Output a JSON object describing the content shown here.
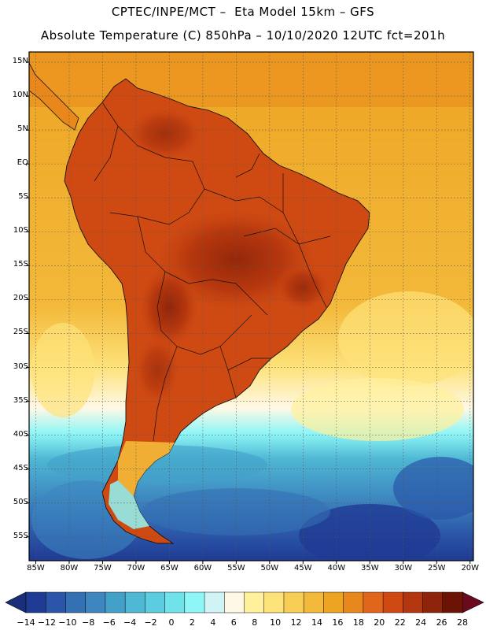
{
  "header": {
    "line1": "CPTEC/INPE/MCT –  Eta Model 15km – GFS",
    "line2": "Absolute Temperature (C) 850hPa – 10/10/2020 12UTC fct=201h"
  },
  "map": {
    "region": "South America",
    "lat_labels": [
      "15N",
      "10N",
      "5N",
      "EQ",
      "5S",
      "10S",
      "15S",
      "20S",
      "25S",
      "30S",
      "35S",
      "40S",
      "45S",
      "50S",
      "55S"
    ],
    "lon_labels": [
      "85W",
      "80W",
      "75W",
      "70W",
      "65W",
      "60W",
      "55W",
      "50W",
      "45W",
      "40W",
      "35W",
      "30W",
      "25W",
      "20W"
    ],
    "lat_values": [
      15,
      10,
      5,
      0,
      -5,
      -10,
      -15,
      -20,
      -25,
      -30,
      -35,
      -40,
      -45,
      -50,
      -55
    ],
    "lon_values": [
      -85,
      -80,
      -75,
      -70,
      -65,
      -60,
      -55,
      -50,
      -45,
      -40,
      -35,
      -30,
      -25,
      -20
    ]
  },
  "colorbar": {
    "labels": [
      "-14",
      "-12",
      "-10",
      "-8",
      "-6",
      "-4",
      "-2",
      "0",
      "2",
      "4",
      "6",
      "8",
      "10",
      "12",
      "14",
      "16",
      "18",
      "20",
      "22",
      "24",
      "26",
      "28"
    ],
    "colors": [
      "#1f3a93",
      "#2a55a8",
      "#3570b4",
      "#3d86bf",
      "#43a0c9",
      "#4fb8d4",
      "#5ccde0",
      "#6fe2ea",
      "#8ef6f6",
      "#d0f3f5",
      "#fff8e6",
      "#fff19b",
      "#fde27a",
      "#f8cd55",
      "#f3b93a",
      "#eea423",
      "#e8881c",
      "#e0661b",
      "#cf4a13",
      "#b4360e",
      "#8e2409",
      "#6b1406"
    ],
    "unit": "C"
  }
}
